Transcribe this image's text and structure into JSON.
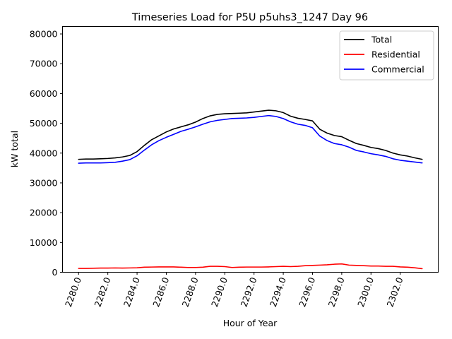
{
  "chart_data": {
    "type": "line",
    "title": "Timeseries Load for P5U p5uhs3_1247  Day 96",
    "xlabel": "Hour of Year",
    "ylabel": "kW total",
    "xlim": [
      2278.9,
      2304.6
    ],
    "ylim": [
      0,
      82500
    ],
    "xticks": [
      2280,
      2282,
      2284,
      2286,
      2288,
      2290,
      2292,
      2294,
      2296,
      2298,
      2300,
      2302
    ],
    "xtick_labels": [
      "2280.0",
      "2282.0",
      "2284.0",
      "2286.0",
      "2288.0",
      "2290.0",
      "2292.0",
      "2294.0",
      "2296.0",
      "2298.0",
      "2300.0",
      "2302.0"
    ],
    "yticks": [
      0,
      10000,
      20000,
      30000,
      40000,
      50000,
      60000,
      70000,
      80000
    ],
    "ytick_labels": [
      "0",
      "10000",
      "20000",
      "30000",
      "40000",
      "50000",
      "60000",
      "70000",
      "80000"
    ],
    "legend_position": "top-right",
    "x": [
      2280.0,
      2280.5,
      2281.0,
      2281.5,
      2282.0,
      2282.5,
      2283.0,
      2283.5,
      2284.0,
      2284.5,
      2285.0,
      2285.5,
      2286.0,
      2286.5,
      2287.0,
      2287.5,
      2288.0,
      2288.5,
      2289.0,
      2289.5,
      2290.0,
      2290.5,
      2291.0,
      2291.5,
      2292.0,
      2292.5,
      2293.0,
      2293.5,
      2294.0,
      2294.5,
      2295.0,
      2295.5,
      2296.0,
      2296.5,
      2297.0,
      2297.5,
      2298.0,
      2298.5,
      2299.0,
      2299.5,
      2300.0,
      2300.5,
      2301.0,
      2301.5,
      2302.0,
      2302.5,
      2303.0,
      2303.5
    ],
    "series": [
      {
        "name": "Total",
        "color": "#000000",
        "values": [
          37900,
          38000,
          38000,
          38100,
          38200,
          38400,
          38700,
          39200,
          40500,
          42600,
          44500,
          45800,
          47100,
          48100,
          48800,
          49500,
          50400,
          51600,
          52500,
          53000,
          53200,
          53300,
          53400,
          53500,
          53800,
          54100,
          54400,
          54200,
          53600,
          52400,
          51700,
          51300,
          50800,
          48000,
          46700,
          45900,
          45500,
          44300,
          43200,
          42600,
          41900,
          41500,
          40900,
          40000,
          39400,
          39000,
          38400,
          37900
        ]
      },
      {
        "name": "Residential",
        "color": "#ff0000",
        "values": [
          1300,
          1300,
          1350,
          1400,
          1400,
          1450,
          1400,
          1450,
          1500,
          1700,
          1750,
          1800,
          1800,
          1800,
          1700,
          1600,
          1600,
          1700,
          2000,
          2000,
          1900,
          1600,
          1700,
          1750,
          1750,
          1750,
          1800,
          1900,
          2000,
          1900,
          2000,
          2200,
          2300,
          2400,
          2500,
          2700,
          2800,
          2400,
          2300,
          2200,
          2100,
          2100,
          2000,
          2000,
          1800,
          1700,
          1500,
          1200
        ]
      },
      {
        "name": "Commercial",
        "color": "#0000ff",
        "values": [
          36600,
          36700,
          36700,
          36700,
          36800,
          36900,
          37300,
          37800,
          39100,
          41000,
          42800,
          44200,
          45300,
          46300,
          47300,
          48000,
          48800,
          49700,
          50500,
          51000,
          51300,
          51600,
          51700,
          51800,
          52000,
          52300,
          52600,
          52300,
          51600,
          50500,
          49700,
          49300,
          48500,
          45700,
          44200,
          43200,
          42800,
          42000,
          40900,
          40400,
          39800,
          39400,
          38900,
          38100,
          37600,
          37300,
          37000,
          36700
        ]
      }
    ]
  }
}
